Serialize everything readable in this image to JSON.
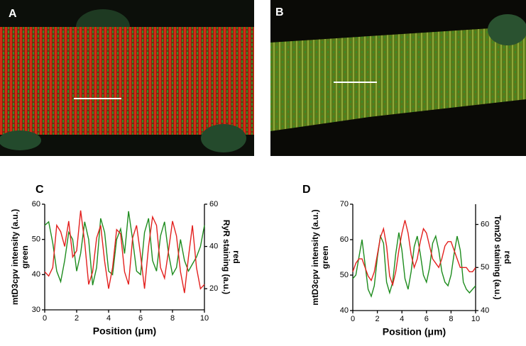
{
  "panel_labels": [
    "A",
    "B"
  ],
  "chart_data": [
    {
      "type": "line",
      "panel": "C",
      "xlabel": "Position (μm)",
      "ylabel": [
        "mtD3cpv intensity (a.u.)",
        "green"
      ],
      "y2label": [
        "RyR staining (a.u.)",
        "red"
      ],
      "xlim": [
        0,
        10
      ],
      "xticks": [
        0,
        2,
        4,
        6,
        8,
        10
      ],
      "ylim": [
        30,
        60
      ],
      "yticks": [
        30,
        40,
        50,
        60
      ],
      "y2lim": [
        10,
        60
      ],
      "y2ticks": [
        20,
        40,
        60
      ],
      "x": [
        0,
        0.25,
        0.5,
        0.75,
        1,
        1.25,
        1.5,
        1.75,
        2,
        2.25,
        2.5,
        2.75,
        3,
        3.25,
        3.5,
        3.75,
        4,
        4.25,
        4.5,
        4.75,
        5,
        5.25,
        5.5,
        5.75,
        6,
        6.25,
        6.5,
        6.75,
        7,
        7.25,
        7.5,
        7.75,
        8,
        8.25,
        8.5,
        8.75,
        9,
        9.25,
        9.5,
        9.75,
        10
      ],
      "series": [
        {
          "color": "#1e8c1e",
          "values": [
            54,
            55,
            49,
            41,
            38,
            44,
            52,
            50,
            41,
            46,
            55,
            50,
            37,
            42,
            56,
            52,
            41,
            40,
            50,
            53,
            46,
            58,
            50,
            41,
            40,
            52,
            56,
            44,
            41,
            51,
            55,
            46,
            40,
            42,
            50,
            44,
            41,
            43,
            45,
            48,
            54
          ]
        },
        {
          "color": "#e3201e",
          "axis": "y2",
          "values": [
            28,
            26,
            30,
            50,
            47,
            40,
            52,
            35,
            38,
            57,
            42,
            22,
            28,
            44,
            50,
            33,
            20,
            30,
            48,
            46,
            28,
            22,
            44,
            50,
            36,
            20,
            40,
            54,
            50,
            30,
            25,
            38,
            52,
            45,
            28,
            18,
            35,
            50,
            30,
            20,
            22
          ]
        }
      ]
    },
    {
      "type": "line",
      "panel": "D",
      "xlabel": "Position (μm)",
      "ylabel": [
        "mtD3cpv intensity (a.u.)",
        "green"
      ],
      "y2label": [
        "Tom20 staining (a.u.)",
        "red"
      ],
      "xlim": [
        0,
        10
      ],
      "xticks": [
        0,
        2,
        4,
        6,
        8,
        10
      ],
      "ylim": [
        40,
        70
      ],
      "yticks": [
        40,
        50,
        60,
        70
      ],
      "y2lim": [
        40,
        64.7
      ],
      "y2ticks": [
        40,
        50,
        60
      ],
      "x": [
        0,
        0.25,
        0.5,
        0.75,
        1,
        1.25,
        1.5,
        1.75,
        2,
        2.25,
        2.5,
        2.75,
        3,
        3.25,
        3.5,
        3.75,
        4,
        4.25,
        4.5,
        4.75,
        5,
        5.25,
        5.5,
        5.75,
        6,
        6.25,
        6.5,
        6.75,
        7,
        7.25,
        7.5,
        7.75,
        8,
        8.25,
        8.5,
        8.75,
        9,
        9.25,
        9.5,
        9.75,
        10
      ],
      "series": [
        {
          "color": "#1e8c1e",
          "values": [
            49,
            50,
            55,
            60,
            53,
            46,
            44,
            47,
            55,
            61,
            59,
            48,
            45,
            48,
            56,
            62,
            57,
            49,
            46,
            51,
            58,
            61,
            56,
            50,
            48,
            52,
            59,
            61,
            57,
            51,
            48,
            47,
            50,
            56,
            61,
            57,
            48,
            46,
            45,
            46,
            47
          ]
        },
        {
          "color": "#e3201e",
          "axis": "y2",
          "values": [
            49,
            51,
            52,
            52,
            50,
            48,
            47,
            49,
            53,
            57,
            59,
            55,
            48,
            46,
            49,
            54,
            58,
            61,
            58,
            53,
            50,
            52,
            56,
            59,
            58,
            55,
            52,
            51,
            50,
            52,
            55,
            56,
            56,
            54,
            52,
            50,
            50,
            50,
            49,
            49,
            50
          ]
        }
      ]
    }
  ]
}
